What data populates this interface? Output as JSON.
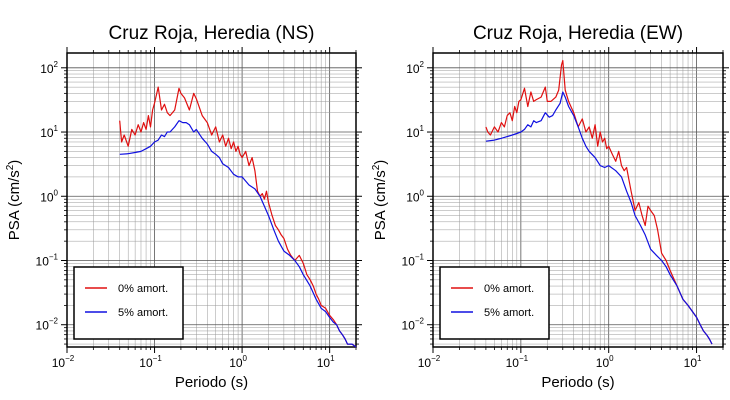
{
  "chart_data": [
    {
      "type": "line",
      "title": "Cruz Roja, Heredia (NS)",
      "xlabel": "Periodo (s)",
      "ylabel_main": "PSA (cm/s",
      "ylabel_sup": "2",
      "ylabel_close": ")",
      "xscale": "log",
      "yscale": "log",
      "xlim": [
        0.01,
        20
      ],
      "ylim": [
        0.0045,
        170
      ],
      "grid": true,
      "legend_position": "bottom-left",
      "x_ticks": [
        {
          "base": "10",
          "exp": "−2",
          "value": 0.01
        },
        {
          "base": "10",
          "exp": "−1",
          "value": 0.1
        },
        {
          "base": "10",
          "exp": "0",
          "value": 1
        },
        {
          "base": "10",
          "exp": "1",
          "value": 10
        }
      ],
      "y_ticks": [
        {
          "base": "10",
          "exp": "−2",
          "value": 0.01
        },
        {
          "base": "10",
          "exp": "−1",
          "value": 0.1
        },
        {
          "base": "10",
          "exp": "0",
          "value": 1
        },
        {
          "base": "10",
          "exp": "1",
          "value": 10
        },
        {
          "base": "10",
          "exp": "2",
          "value": 100
        }
      ],
      "series": [
        {
          "name": "0% amort.",
          "color": "#e01010",
          "x": [
            0.04,
            0.042,
            0.045,
            0.05,
            0.055,
            0.06,
            0.065,
            0.07,
            0.075,
            0.08,
            0.085,
            0.09,
            0.095,
            0.1,
            0.11,
            0.12,
            0.13,
            0.14,
            0.15,
            0.17,
            0.19,
            0.2,
            0.22,
            0.25,
            0.28,
            0.3,
            0.35,
            0.4,
            0.45,
            0.5,
            0.55,
            0.6,
            0.65,
            0.7,
            0.75,
            0.8,
            0.85,
            0.9,
            0.95,
            1.0,
            1.1,
            1.2,
            1.3,
            1.4,
            1.5,
            1.6,
            1.7,
            1.8,
            1.9,
            2.0,
            2.2,
            2.4,
            2.6,
            2.8,
            3.0,
            3.3,
            3.6,
            4.0,
            4.5,
            5.0,
            5.5,
            6.0,
            6.5,
            7.0,
            7.5,
            8.0,
            9.0,
            10.0,
            11.0,
            12.0,
            13.0,
            14.0,
            15.0,
            16.0,
            18.0,
            20.0
          ],
          "y": [
            15,
            7,
            9,
            6,
            11,
            9,
            13,
            10,
            14,
            11,
            18,
            12,
            22,
            28,
            50,
            22,
            27,
            20,
            18,
            22,
            48,
            40,
            34,
            22,
            40,
            33,
            18,
            14,
            9,
            12,
            7,
            9,
            6,
            8,
            5.5,
            7,
            5,
            6,
            4.5,
            4,
            5,
            3,
            4,
            2.5,
            1.2,
            1.0,
            1.1,
            0.9,
            1.2,
            0.8,
            0.5,
            0.35,
            0.3,
            0.25,
            0.22,
            0.15,
            0.12,
            0.1,
            0.12,
            0.09,
            0.06,
            0.05,
            0.04,
            0.03,
            0.025,
            0.02,
            0.018,
            0.014,
            0.012,
            0.01,
            0.008,
            0.007,
            0.006,
            0.005,
            0.005,
            0.0045
          ]
        },
        {
          "name": "5% amort.",
          "color": "#1010e0",
          "x": [
            0.04,
            0.05,
            0.06,
            0.07,
            0.08,
            0.09,
            0.1,
            0.11,
            0.12,
            0.13,
            0.14,
            0.15,
            0.17,
            0.19,
            0.21,
            0.23,
            0.25,
            0.28,
            0.3,
            0.35,
            0.4,
            0.45,
            0.5,
            0.55,
            0.6,
            0.7,
            0.8,
            0.9,
            1.0,
            1.2,
            1.4,
            1.6,
            1.8,
            2.0,
            2.3,
            2.6,
            3.0,
            3.5,
            4.0,
            4.5,
            5.0,
            6.0,
            7.0,
            8.0,
            9.0,
            10.0,
            11.0,
            12.0,
            13.0,
            14.0,
            15.0,
            16.0,
            18.0,
            20.0
          ],
          "y": [
            4.5,
            4.6,
            4.8,
            5,
            5.5,
            6,
            7,
            7.5,
            9,
            8.5,
            10,
            10,
            12,
            15,
            14,
            14,
            13,
            10,
            11,
            8,
            6.5,
            5,
            4.5,
            4,
            3.2,
            2.8,
            2.2,
            2.0,
            2.0,
            1.5,
            1.3,
            1.0,
            0.7,
            0.5,
            0.3,
            0.2,
            0.14,
            0.12,
            0.1,
            0.08,
            0.06,
            0.04,
            0.025,
            0.018,
            0.016,
            0.013,
            0.011,
            0.01,
            0.008,
            0.007,
            0.006,
            0.005,
            0.005,
            0.0045
          ]
        }
      ]
    },
    {
      "type": "line",
      "title": "Cruz Roja, Heredia (EW)",
      "xlabel": "Periodo (s)",
      "ylabel_main": "PSA (cm/s",
      "ylabel_sup": "2",
      "ylabel_close": ")",
      "xscale": "log",
      "yscale": "log",
      "xlim": [
        0.01,
        20
      ],
      "ylim": [
        0.0045,
        170
      ],
      "grid": true,
      "legend_position": "bottom-left",
      "x_ticks": [
        {
          "base": "10",
          "exp": "−2",
          "value": 0.01
        },
        {
          "base": "10",
          "exp": "−1",
          "value": 0.1
        },
        {
          "base": "10",
          "exp": "0",
          "value": 1
        },
        {
          "base": "10",
          "exp": "1",
          "value": 10
        }
      ],
      "y_ticks": [
        {
          "base": "10",
          "exp": "−2",
          "value": 0.01
        },
        {
          "base": "10",
          "exp": "−1",
          "value": 0.1
        },
        {
          "base": "10",
          "exp": "0",
          "value": 1
        },
        {
          "base": "10",
          "exp": "1",
          "value": 10
        },
        {
          "base": "10",
          "exp": "2",
          "value": 100
        }
      ],
      "series": [
        {
          "name": "0% amort.",
          "color": "#e01010",
          "x": [
            0.04,
            0.042,
            0.045,
            0.05,
            0.055,
            0.06,
            0.065,
            0.07,
            0.075,
            0.08,
            0.085,
            0.09,
            0.095,
            0.1,
            0.11,
            0.12,
            0.13,
            0.14,
            0.15,
            0.17,
            0.19,
            0.2,
            0.22,
            0.25,
            0.27,
            0.29,
            0.3,
            0.32,
            0.35,
            0.4,
            0.45,
            0.5,
            0.55,
            0.6,
            0.65,
            0.7,
            0.75,
            0.8,
            0.85,
            0.9,
            0.95,
            1.0,
            1.1,
            1.2,
            1.3,
            1.4,
            1.5,
            1.6,
            1.8,
            2.0,
            2.2,
            2.4,
            2.6,
            2.8,
            3.0,
            3.3,
            3.6,
            4.0,
            4.5,
            5.0,
            6.0,
            7.0,
            8.0,
            9.0,
            10.0,
            11.0,
            12.0,
            13.0,
            14.0,
            15.0
          ],
          "y": [
            12,
            10,
            9,
            12,
            10,
            14,
            12,
            18,
            20,
            15,
            25,
            20,
            30,
            32,
            48,
            25,
            42,
            30,
            32,
            35,
            50,
            30,
            30,
            35,
            45,
            110,
            130,
            45,
            30,
            20,
            12,
            16,
            10,
            12,
            8,
            13,
            6,
            10,
            7,
            8,
            5.5,
            6,
            4.5,
            3.5,
            5,
            3,
            2.5,
            2.8,
            1.2,
            0.6,
            0.8,
            0.5,
            0.35,
            0.7,
            0.6,
            0.5,
            0.3,
            0.13,
            0.1,
            0.07,
            0.04,
            0.025,
            0.02,
            0.016,
            0.013,
            0.01,
            0.008,
            0.007,
            0.006,
            0.005
          ]
        },
        {
          "name": "5% amort.",
          "color": "#1010e0",
          "x": [
            0.04,
            0.05,
            0.06,
            0.07,
            0.08,
            0.09,
            0.1,
            0.11,
            0.12,
            0.13,
            0.14,
            0.15,
            0.17,
            0.19,
            0.21,
            0.23,
            0.25,
            0.28,
            0.3,
            0.32,
            0.35,
            0.4,
            0.45,
            0.5,
            0.55,
            0.6,
            0.7,
            0.8,
            0.9,
            1.0,
            1.2,
            1.4,
            1.6,
            1.8,
            2.0,
            2.3,
            2.6,
            3.0,
            3.5,
            4.0,
            4.5,
            5.0,
            6.0,
            7.0,
            8.0,
            9.0,
            10.0,
            11.0,
            12.0,
            13.0,
            14.0,
            15.0
          ],
          "y": [
            7.2,
            7.5,
            8,
            8.5,
            9,
            9.5,
            10,
            11,
            13,
            12,
            15,
            14,
            15,
            20,
            17,
            18,
            22,
            28,
            42,
            35,
            25,
            18,
            12,
            8,
            6,
            5,
            4,
            3,
            2.8,
            3,
            2.5,
            2.0,
            1.2,
            0.8,
            0.5,
            0.35,
            0.25,
            0.15,
            0.12,
            0.1,
            0.08,
            0.06,
            0.04,
            0.025,
            0.02,
            0.016,
            0.013,
            0.01,
            0.008,
            0.007,
            0.006,
            0.005
          ]
        }
      ]
    }
  ]
}
